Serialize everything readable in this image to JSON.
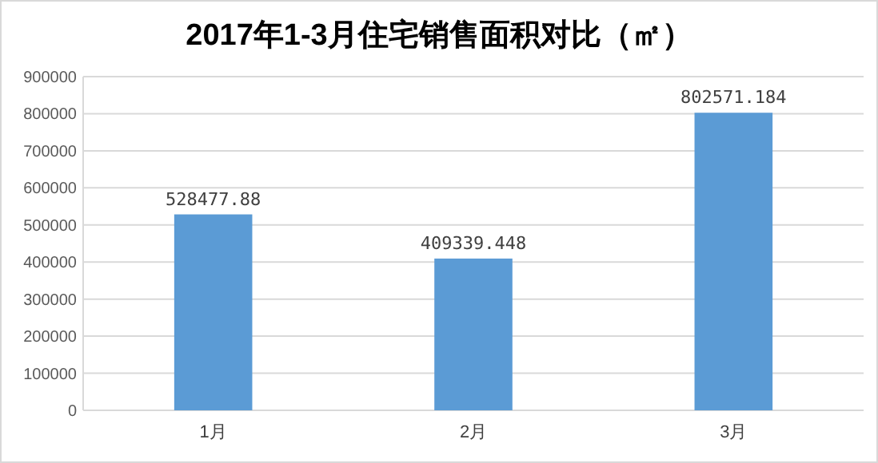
{
  "chart_data": {
    "type": "bar",
    "title": "2017年1-3月住宅销售面积对比（㎡）",
    "categories": [
      "1月",
      "2月",
      "3月"
    ],
    "values": [
      528477.88,
      409339.448,
      802571.184
    ],
    "color": "#5b9bd5",
    "ylim": [
      0,
      900000
    ],
    "yticks": [
      0,
      100000,
      200000,
      300000,
      400000,
      500000,
      600000,
      700000,
      800000,
      900000
    ],
    "grid": "y",
    "data_labels": true
  }
}
